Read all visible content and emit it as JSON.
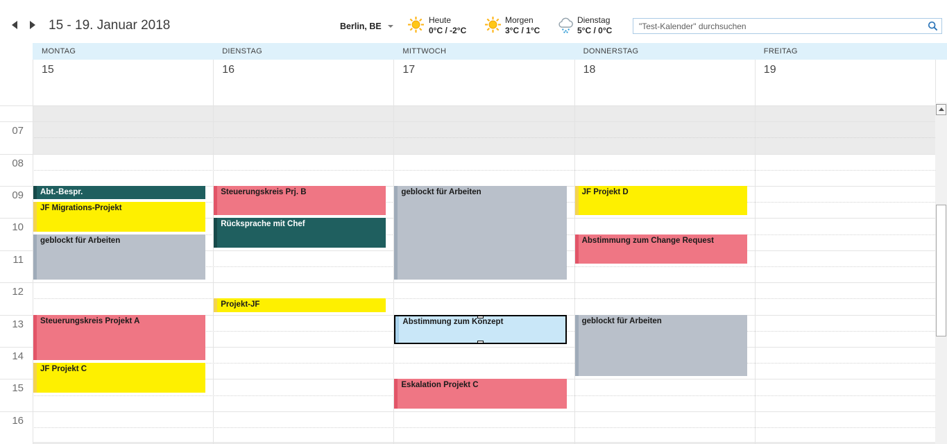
{
  "toolbar": {
    "title": "15 - 19. Januar 2018",
    "location": "Berlin, BE",
    "weather": [
      {
        "day": "Heute",
        "temps": "0°C / -2°C",
        "icon": "sun"
      },
      {
        "day": "Morgen",
        "temps": "3°C / 1°C",
        "icon": "sun"
      },
      {
        "day": "Dienstag",
        "temps": "5°C / 0°C",
        "icon": "rain"
      }
    ],
    "search_placeholder": "\"Test-Kalender\" durchsuchen"
  },
  "calendar": {
    "days": [
      {
        "name": "MONTAG",
        "date": "15"
      },
      {
        "name": "DIENSTAG",
        "date": "16"
      },
      {
        "name": "MITTWOCH",
        "date": "17"
      },
      {
        "name": "DONNERSTAG",
        "date": "18"
      },
      {
        "name": "FREITAG",
        "date": "19"
      }
    ],
    "hours": [
      "07",
      "08",
      "09",
      "10",
      "11",
      "12",
      "13",
      "14",
      "15",
      "16"
    ],
    "events": [
      {
        "day": 0,
        "start": "09:00",
        "end": "09:30",
        "title": "Abt.-Bespr.",
        "category": "teal"
      },
      {
        "day": 0,
        "start": "09:30",
        "end": "10:30",
        "title": "JF Migrations-Projekt",
        "category": "yellow"
      },
      {
        "day": 0,
        "start": "10:30",
        "end": "12:00",
        "title": "geblockt für Arbeiten",
        "category": "gray"
      },
      {
        "day": 0,
        "start": "13:00",
        "end": "14:30",
        "title": "Steuerungskreis Projekt A",
        "category": "red"
      },
      {
        "day": 0,
        "start": "14:30",
        "end": "15:30",
        "title": "JF Projekt C",
        "category": "yellow"
      },
      {
        "day": 1,
        "start": "09:00",
        "end": "10:00",
        "title": "Steuerungskreis Prj. B",
        "category": "red"
      },
      {
        "day": 1,
        "start": "10:00",
        "end": "11:00",
        "title": "Rücksprache mit Chef",
        "category": "teal"
      },
      {
        "day": 1,
        "start": "12:30",
        "end": "13:00",
        "title": "Projekt-JF",
        "category": "yellow"
      },
      {
        "day": 2,
        "start": "09:00",
        "end": "12:00",
        "title": "geblockt für Arbeiten",
        "category": "gray"
      },
      {
        "day": 2,
        "start": "13:00",
        "end": "14:00",
        "title": "Abstimmung zum Konzept",
        "category": "blue",
        "selected": true
      },
      {
        "day": 2,
        "start": "15:00",
        "end": "16:00",
        "title": "Eskalation Projekt C",
        "category": "red"
      },
      {
        "day": 3,
        "start": "09:00",
        "end": "10:00",
        "title": "JF Projekt D",
        "category": "yellow"
      },
      {
        "day": 3,
        "start": "10:30",
        "end": "11:30",
        "title": "Abstimmung zum Change Request",
        "category": "red"
      },
      {
        "day": 3,
        "start": "13:00",
        "end": "15:00",
        "title": "geblockt für Arbeiten",
        "category": "gray"
      }
    ]
  },
  "colors": {
    "header_band": "#DEF1FB",
    "non_working_hours": "#EBEBEB",
    "grid_line": "#E3E3E3",
    "search_icon_blue": "#2B74B8",
    "sun_icon": "#FFC716",
    "rain_drops": "#2E9BD6",
    "selection_border": "#000000",
    "categories": {
      "teal": {
        "fill": "#1F5F5F",
        "strip": "#164949",
        "text": "#FFFFFF"
      },
      "yellow": {
        "fill": "#FEF000",
        "strip": "#F4D44E",
        "text": "#1A1A1A"
      },
      "red": {
        "fill": "#EF7684",
        "strip": "#E25568",
        "text": "#1A1A1A"
      },
      "gray": {
        "fill": "#B9C0CA",
        "strip": "#9FABB9",
        "text": "#1A1A1A"
      },
      "blue": {
        "fill": "#C9E7F8",
        "strip": "#A9D2EC",
        "text": "#1A1A1A"
      }
    }
  }
}
